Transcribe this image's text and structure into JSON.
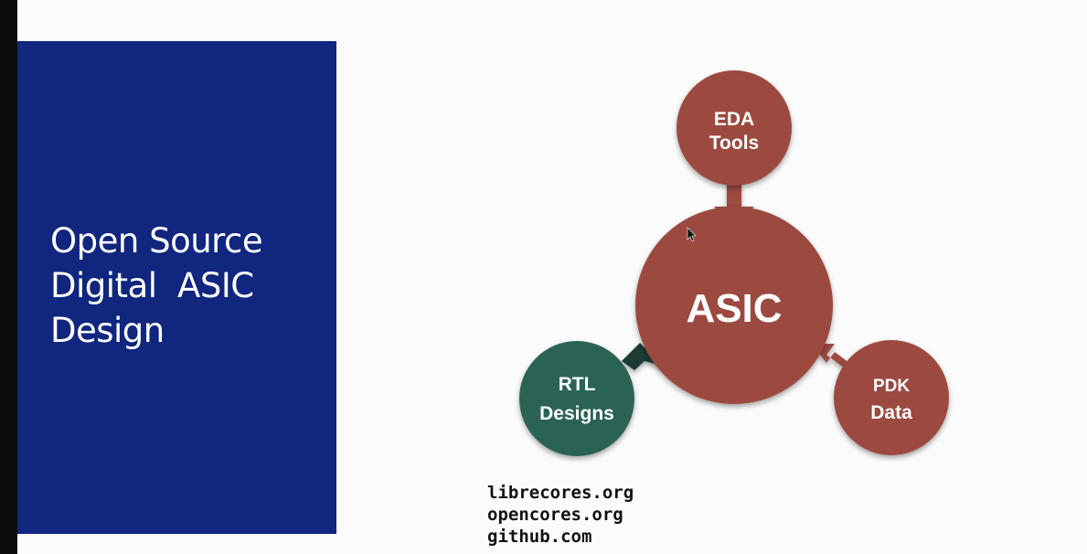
{
  "slide": {
    "title_lines": [
      "Open Source",
      "Digital  ASIC",
      "Design"
    ]
  },
  "diagram": {
    "center": {
      "label": "ASIC",
      "color": "#9c4a3f"
    },
    "nodes": [
      {
        "id": "eda",
        "lines": [
          "EDA",
          "Tools"
        ],
        "color": "#9c4a3f"
      },
      {
        "id": "rtl",
        "lines": [
          "RTL",
          "Designs"
        ],
        "color": "#2b6457"
      },
      {
        "id": "pdk",
        "lines": [
          "PDK",
          "Data"
        ],
        "color": "#9c4a3f"
      }
    ]
  },
  "resources": [
    "librecores.org",
    "opencores.org",
    "github.com"
  ],
  "colors": {
    "panel": "#10267f",
    "arrow_dark": "#1f3b36"
  }
}
